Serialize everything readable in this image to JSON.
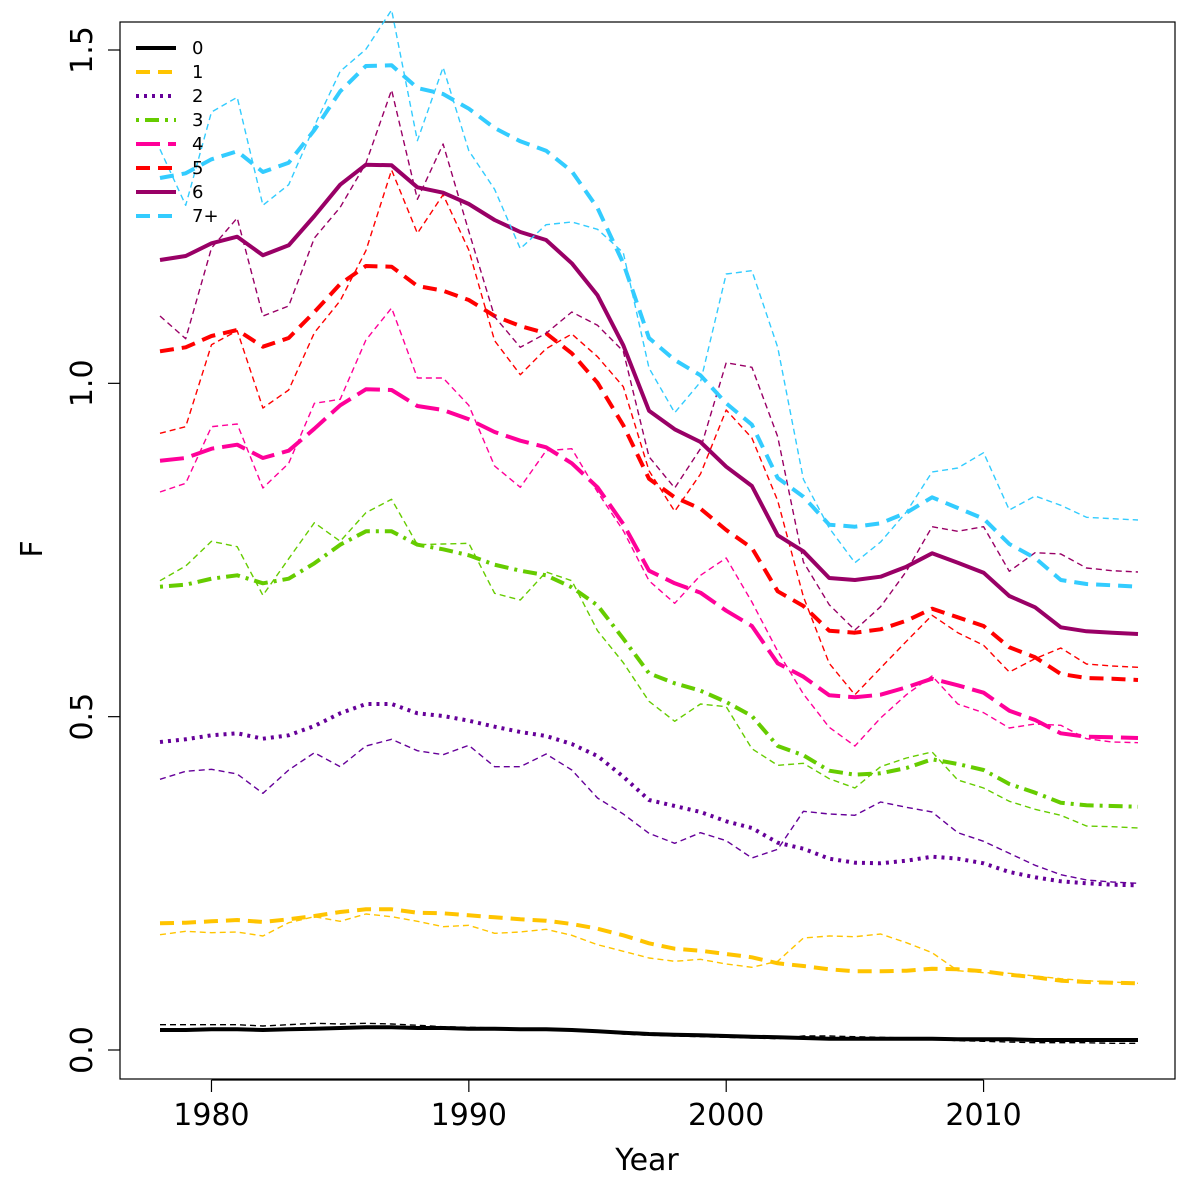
{
  "chart_data": {
    "type": "line",
    "title": "",
    "xlabel": "Year",
    "ylabel": "F",
    "xlim": [
      1978,
      2016
    ],
    "ylim": [
      0.0,
      1.5
    ],
    "xticks": [
      1980,
      1990,
      2000,
      2010
    ],
    "yticks": [
      0.0,
      0.5,
      1.0,
      1.5
    ],
    "xtick_labels": [
      "1980",
      "1990",
      "2000",
      "2010"
    ],
    "ytick_labels": [
      "0.0",
      "0.5",
      "1.0",
      "1.5"
    ],
    "grid": false,
    "legend_position": "top-left",
    "x": [
      1978,
      1979,
      1980,
      1981,
      1982,
      1983,
      1984,
      1985,
      1986,
      1987,
      1988,
      1989,
      1990,
      1991,
      1992,
      1993,
      1994,
      1995,
      1996,
      1997,
      1998,
      1999,
      2000,
      2001,
      2002,
      2003,
      2004,
      2005,
      2006,
      2007,
      2008,
      2009,
      2010,
      2011,
      2012,
      2013,
      2014,
      2015,
      2016
    ],
    "series": [
      {
        "name": "0",
        "color": "#000000",
        "dash": "solid",
        "values": [
          0.03,
          0.03,
          0.031,
          0.031,
          0.03,
          0.031,
          0.032,
          0.033,
          0.034,
          0.034,
          0.033,
          0.033,
          0.032,
          0.032,
          0.031,
          0.031,
          0.03,
          0.028,
          0.026,
          0.024,
          0.023,
          0.022,
          0.021,
          0.02,
          0.019,
          0.018,
          0.017,
          0.017,
          0.017,
          0.017,
          0.017,
          0.016,
          0.016,
          0.016,
          0.015,
          0.015,
          0.015,
          0.015,
          0.015
        ],
        "observed": [
          0.038,
          0.038,
          0.038,
          0.038,
          0.036,
          0.038,
          0.04,
          0.039,
          0.04,
          0.039,
          0.037,
          0.035,
          0.034,
          0.033,
          0.032,
          0.031,
          0.029,
          0.027,
          0.024,
          0.022,
          0.021,
          0.02,
          0.019,
          0.018,
          0.017,
          0.021,
          0.021,
          0.02,
          0.019,
          0.018,
          0.016,
          0.014,
          0.013,
          0.012,
          0.011,
          0.011,
          0.011,
          0.01,
          0.01
        ]
      },
      {
        "name": "1",
        "color": "#ffc400",
        "dash": "dashed",
        "values": [
          0.19,
          0.191,
          0.193,
          0.195,
          0.192,
          0.196,
          0.201,
          0.207,
          0.211,
          0.211,
          0.206,
          0.205,
          0.202,
          0.199,
          0.196,
          0.194,
          0.189,
          0.182,
          0.172,
          0.16,
          0.152,
          0.149,
          0.144,
          0.139,
          0.13,
          0.126,
          0.121,
          0.118,
          0.118,
          0.119,
          0.122,
          0.121,
          0.118,
          0.113,
          0.109,
          0.104,
          0.102,
          0.101,
          0.1
        ],
        "observed": [
          0.173,
          0.178,
          0.176,
          0.177,
          0.171,
          0.191,
          0.2,
          0.193,
          0.204,
          0.2,
          0.193,
          0.185,
          0.187,
          0.175,
          0.177,
          0.181,
          0.172,
          0.158,
          0.148,
          0.138,
          0.133,
          0.136,
          0.129,
          0.124,
          0.133,
          0.168,
          0.171,
          0.17,
          0.174,
          0.161,
          0.146,
          0.119,
          0.116,
          0.115,
          0.111,
          0.107,
          0.104,
          0.102,
          0.1
        ]
      },
      {
        "name": "2",
        "color": "#660099",
        "dash": "dotted",
        "values": [
          0.462,
          0.466,
          0.472,
          0.475,
          0.467,
          0.472,
          0.486,
          0.505,
          0.519,
          0.519,
          0.505,
          0.501,
          0.494,
          0.485,
          0.477,
          0.471,
          0.459,
          0.441,
          0.41,
          0.375,
          0.366,
          0.357,
          0.343,
          0.333,
          0.311,
          0.302,
          0.287,
          0.281,
          0.28,
          0.284,
          0.29,
          0.287,
          0.28,
          0.267,
          0.259,
          0.253,
          0.25,
          0.248,
          0.247
        ],
        "observed": [
          0.406,
          0.418,
          0.421,
          0.414,
          0.385,
          0.42,
          0.446,
          0.425,
          0.456,
          0.466,
          0.449,
          0.443,
          0.457,
          0.425,
          0.425,
          0.444,
          0.42,
          0.378,
          0.354,
          0.325,
          0.31,
          0.326,
          0.314,
          0.288,
          0.301,
          0.358,
          0.354,
          0.352,
          0.372,
          0.364,
          0.357,
          0.326,
          0.313,
          0.295,
          0.277,
          0.263,
          0.255,
          0.252,
          0.25
        ]
      },
      {
        "name": "3",
        "color": "#66cc00",
        "dash": "dot-dash",
        "values": [
          0.695,
          0.698,
          0.707,
          0.712,
          0.7,
          0.707,
          0.73,
          0.758,
          0.778,
          0.778,
          0.758,
          0.751,
          0.742,
          0.728,
          0.719,
          0.712,
          0.694,
          0.667,
          0.617,
          0.565,
          0.55,
          0.539,
          0.522,
          0.501,
          0.456,
          0.442,
          0.419,
          0.413,
          0.415,
          0.423,
          0.436,
          0.429,
          0.42,
          0.399,
          0.386,
          0.371,
          0.367,
          0.366,
          0.365
        ],
        "observed": [
          0.704,
          0.726,
          0.763,
          0.755,
          0.682,
          0.737,
          0.791,
          0.763,
          0.806,
          0.826,
          0.758,
          0.759,
          0.76,
          0.685,
          0.675,
          0.717,
          0.704,
          0.629,
          0.581,
          0.523,
          0.493,
          0.519,
          0.515,
          0.452,
          0.427,
          0.43,
          0.407,
          0.393,
          0.425,
          0.438,
          0.447,
          0.405,
          0.393,
          0.373,
          0.361,
          0.352,
          0.336,
          0.335,
          0.333
        ]
      },
      {
        "name": "4",
        "color": "#ff0099",
        "dash": "long-dash",
        "values": [
          0.884,
          0.888,
          0.902,
          0.908,
          0.888,
          0.899,
          0.932,
          0.967,
          0.991,
          0.99,
          0.966,
          0.96,
          0.946,
          0.927,
          0.914,
          0.904,
          0.88,
          0.844,
          0.789,
          0.719,
          0.7,
          0.686,
          0.659,
          0.636,
          0.58,
          0.56,
          0.532,
          0.529,
          0.533,
          0.544,
          0.557,
          0.547,
          0.536,
          0.509,
          0.495,
          0.475,
          0.47,
          0.469,
          0.468
        ],
        "observed": [
          0.837,
          0.85,
          0.935,
          0.939,
          0.843,
          0.88,
          0.97,
          0.976,
          1.065,
          1.113,
          1.008,
          1.008,
          0.967,
          0.876,
          0.844,
          0.899,
          0.902,
          0.837,
          0.779,
          0.704,
          0.67,
          0.712,
          0.738,
          0.672,
          0.598,
          0.534,
          0.484,
          0.456,
          0.498,
          0.533,
          0.561,
          0.519,
          0.506,
          0.483,
          0.489,
          0.487,
          0.467,
          0.462,
          0.461
        ]
      },
      {
        "name": "5",
        "color": "#ff0000",
        "dash": "dashed",
        "values": [
          1.048,
          1.054,
          1.071,
          1.08,
          1.055,
          1.068,
          1.107,
          1.149,
          1.176,
          1.175,
          1.146,
          1.139,
          1.125,
          1.101,
          1.086,
          1.075,
          1.045,
          1.001,
          0.937,
          0.857,
          0.829,
          0.812,
          0.78,
          0.753,
          0.688,
          0.666,
          0.629,
          0.626,
          0.631,
          0.644,
          0.662,
          0.649,
          0.636,
          0.604,
          0.589,
          0.564,
          0.558,
          0.557,
          0.555
        ],
        "observed": [
          0.925,
          0.935,
          1.058,
          1.079,
          0.963,
          0.99,
          1.076,
          1.124,
          1.199,
          1.32,
          1.225,
          1.283,
          1.2,
          1.064,
          1.013,
          1.052,
          1.074,
          1.04,
          0.995,
          0.869,
          0.808,
          0.864,
          0.96,
          0.918,
          0.824,
          0.68,
          0.58,
          0.533,
          0.573,
          0.613,
          0.652,
          0.626,
          0.607,
          0.567,
          0.587,
          0.603,
          0.579,
          0.576,
          0.574
        ]
      },
      {
        "name": "6",
        "color": "#990066",
        "dash": "solid",
        "values": [
          1.185,
          1.191,
          1.21,
          1.22,
          1.192,
          1.207,
          1.251,
          1.298,
          1.328,
          1.327,
          1.294,
          1.286,
          1.269,
          1.245,
          1.227,
          1.215,
          1.18,
          1.132,
          1.057,
          0.959,
          0.931,
          0.912,
          0.875,
          0.846,
          0.772,
          0.748,
          0.708,
          0.705,
          0.71,
          0.725,
          0.745,
          0.731,
          0.716,
          0.681,
          0.664,
          0.634,
          0.628,
          0.626,
          0.624
        ],
        "observed": [
          1.101,
          1.067,
          1.203,
          1.248,
          1.101,
          1.116,
          1.218,
          1.264,
          1.33,
          1.44,
          1.276,
          1.359,
          1.228,
          1.1,
          1.054,
          1.075,
          1.107,
          1.087,
          1.048,
          0.89,
          0.843,
          0.902,
          1.031,
          1.024,
          0.92,
          0.732,
          0.668,
          0.63,
          0.665,
          0.718,
          0.785,
          0.778,
          0.785,
          0.718,
          0.746,
          0.744,
          0.723,
          0.719,
          0.717
        ]
      },
      {
        "name": "7+",
        "color": "#33ccff",
        "dash": "dashed",
        "values": [
          1.308,
          1.315,
          1.336,
          1.348,
          1.317,
          1.331,
          1.38,
          1.438,
          1.476,
          1.477,
          1.443,
          1.434,
          1.412,
          1.383,
          1.363,
          1.349,
          1.318,
          1.263,
          1.18,
          1.068,
          1.035,
          1.012,
          0.97,
          0.938,
          0.858,
          0.83,
          0.788,
          0.785,
          0.79,
          0.806,
          0.829,
          0.813,
          0.797,
          0.759,
          0.738,
          0.705,
          0.699,
          0.697,
          0.695
        ],
        "observed": [
          1.351,
          1.267,
          1.407,
          1.429,
          1.267,
          1.298,
          1.386,
          1.468,
          1.501,
          1.56,
          1.364,
          1.474,
          1.349,
          1.291,
          1.202,
          1.238,
          1.242,
          1.231,
          1.196,
          1.023,
          0.956,
          1.002,
          1.164,
          1.169,
          1.054,
          0.856,
          0.783,
          0.731,
          0.762,
          0.807,
          0.867,
          0.873,
          0.896,
          0.81,
          0.831,
          0.817,
          0.799,
          0.797,
          0.795
        ]
      }
    ]
  }
}
